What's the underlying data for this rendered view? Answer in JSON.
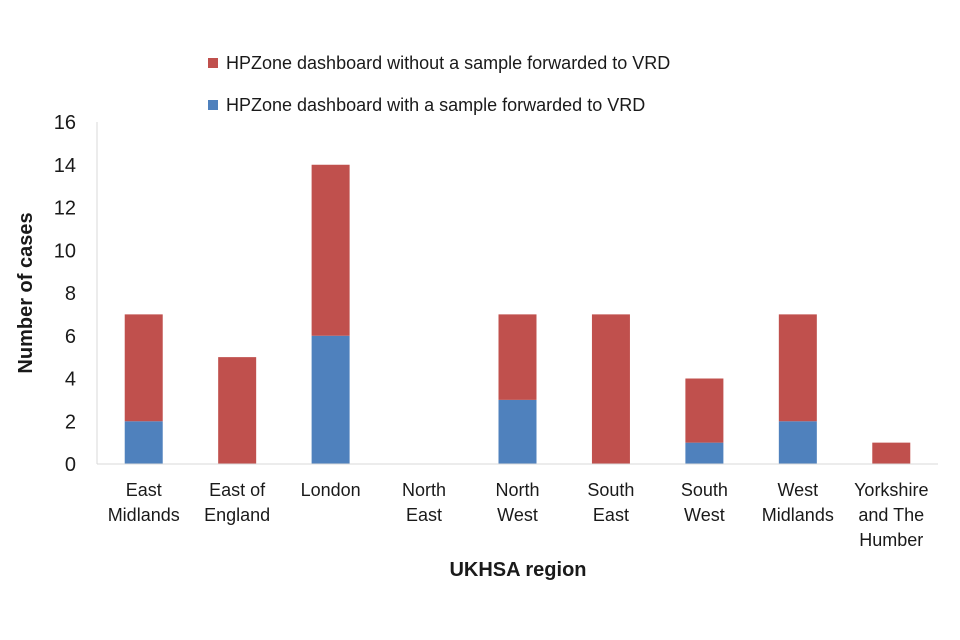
{
  "chart_data": {
    "type": "bar",
    "stacked": true,
    "title": "",
    "xlabel": "UKHSA region",
    "ylabel": "Number of cases",
    "ylim": [
      0,
      16
    ],
    "yticks": [
      0,
      2,
      4,
      6,
      8,
      10,
      12,
      14,
      16
    ],
    "grid": false,
    "legend_position": "top",
    "categories": [
      [
        "East",
        "Midlands"
      ],
      [
        "East of",
        "England"
      ],
      [
        "London"
      ],
      [
        "North",
        "East"
      ],
      [
        "North",
        "West"
      ],
      [
        "South",
        "East"
      ],
      [
        "South",
        "West"
      ],
      [
        "West",
        "Midlands"
      ],
      [
        "Yorkshire",
        "and The",
        "Humber"
      ]
    ],
    "series": [
      {
        "name": "HPZone dashboard with a sample forwarded to VRD",
        "color": "#4F81BD",
        "values": [
          2,
          0,
          6,
          0,
          3,
          0,
          1,
          2,
          0
        ]
      },
      {
        "name": "HPZone dashboard without a sample forwarded to VRD",
        "color": "#C0504D",
        "values": [
          5,
          5,
          8,
          0,
          4,
          7,
          3,
          5,
          1
        ]
      }
    ]
  }
}
